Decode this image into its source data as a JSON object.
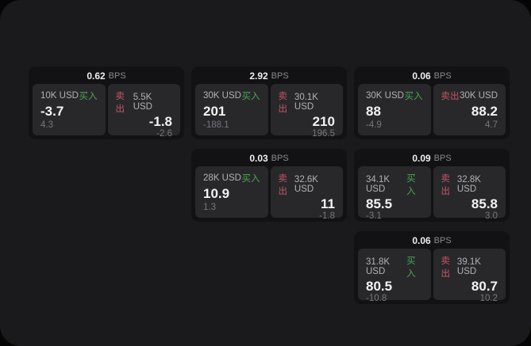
{
  "labels": {
    "bps": "BPS",
    "buy": "买入",
    "sell": "卖出"
  },
  "colors": {
    "page_background": "#050505",
    "window_background": "#1a1a1c",
    "card_background": "#121214",
    "tile_background": "#28282b",
    "buy_accent": "#4aa654",
    "sell_accent": "#c75568"
  },
  "cards": [
    {
      "bps": "0.62",
      "buy": {
        "amount": "10K USD",
        "price": "-3.7",
        "delta": "4.3"
      },
      "sell": {
        "amount": "5.5K USD",
        "price": "-1.8",
        "delta": "-2.6"
      }
    },
    {
      "bps": "2.92",
      "buy": {
        "amount": "30K USD",
        "price": "201",
        "delta": "-188.1"
      },
      "sell": {
        "amount": "30.1K USD",
        "price": "210",
        "delta": "196.5"
      }
    },
    {
      "bps": "0.06",
      "buy": {
        "amount": "30K USD",
        "price": "88",
        "delta": "-4.9"
      },
      "sell": {
        "amount": "30K USD",
        "price": "88.2",
        "delta": "4.7"
      }
    },
    {
      "bps": "0.03",
      "buy": {
        "amount": "28K USD",
        "price": "10.9",
        "delta": "1.3"
      },
      "sell": {
        "amount": "32.6K USD",
        "price": "11",
        "delta": "-1.8"
      }
    },
    {
      "bps": "0.09",
      "buy": {
        "amount": "34.1K USD",
        "price": "85.5",
        "delta": "-3.1"
      },
      "sell": {
        "amount": "32.8K USD",
        "price": "85.8",
        "delta": "3.0"
      }
    },
    {
      "bps": "0.06",
      "buy": {
        "amount": "31.8K USD",
        "price": "80.5",
        "delta": "-10.8"
      },
      "sell": {
        "amount": "39.1K USD",
        "price": "80.7",
        "delta": "10.2"
      }
    }
  ]
}
